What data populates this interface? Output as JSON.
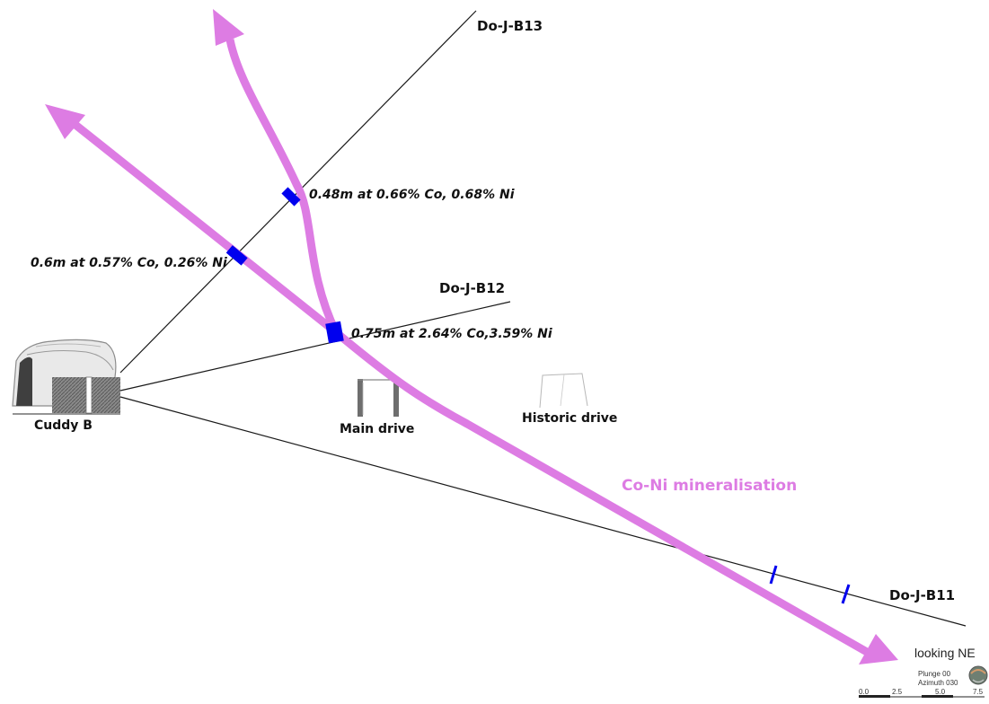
{
  "drillholes": [
    {
      "name": "Do-J-B13"
    },
    {
      "name": "Do-J-B12"
    },
    {
      "name": "Do-J-B11"
    }
  ],
  "intercepts": [
    {
      "text": "0.48m at 0.66% Co, 0.68% Ni"
    },
    {
      "text": "0.6m at 0.57% Co, 0.26% Ni"
    },
    {
      "text": "0.75m at 2.64% Co,3.59% Ni"
    }
  ],
  "structures": {
    "cuddy": "Cuddy B",
    "main_drive": "Main drive",
    "historic_drive": "Historic drive"
  },
  "mineralisation": {
    "label": "Co-Ni mineralisation",
    "color": "#dd7ce3"
  },
  "intercept_color": "#0000ee",
  "view": {
    "direction": "looking NE",
    "plunge": "Plunge 00",
    "azimuth": "Azimuth 030",
    "scale_ticks": [
      "0.0",
      "2.5",
      "5.0",
      "7.5"
    ]
  }
}
